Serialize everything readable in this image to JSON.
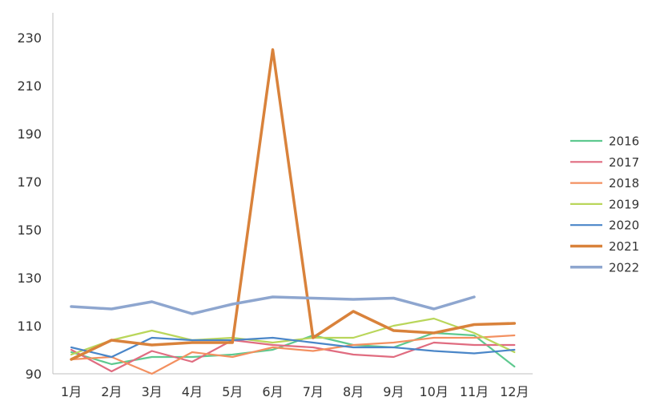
{
  "chart_data": {
    "type": "line",
    "title": "",
    "xlabel": "",
    "ylabel": "",
    "categories": [
      "1月",
      "2月",
      "3月",
      "4月",
      "5月",
      "6月",
      "7月",
      "8月",
      "9月",
      "10月",
      "11月",
      "12月"
    ],
    "ylim": [
      90,
      230
    ],
    "yticks": [
      90,
      110,
      130,
      150,
      170,
      190,
      210,
      230
    ],
    "grid": false,
    "legend_position": "right",
    "series": [
      {
        "name": "2016",
        "color": "#5ec98f",
        "width": 2.2,
        "values": [
          99,
          94,
          97,
          97,
          98,
          100,
          106,
          102,
          101,
          107,
          106,
          93
        ]
      },
      {
        "name": "2017",
        "color": "#e06c80",
        "width": 2.2,
        "values": [
          100,
          91,
          99.5,
          95,
          104,
          102,
          101,
          98,
          97,
          103,
          102,
          102
        ]
      },
      {
        "name": "2018",
        "color": "#f39060",
        "width": 2.2,
        "values": [
          96,
          97,
          90,
          99,
          97,
          101,
          99.5,
          102,
          103,
          105,
          105,
          106
        ]
      },
      {
        "name": "2019",
        "color": "#b9d65a",
        "width": 2.2,
        "values": [
          98,
          104,
          108,
          104,
          105,
          103,
          105,
          105,
          110,
          113,
          107,
          99
        ]
      },
      {
        "name": "2020",
        "color": "#4a86c8",
        "width": 2.2,
        "values": [
          101,
          97,
          105,
          104,
          104,
          105,
          103,
          101,
          101,
          99.5,
          98.5,
          100
        ]
      },
      {
        "name": "2021",
        "color": "#d9823b",
        "width": 3.5,
        "values": [
          96,
          104,
          102,
          103,
          103,
          225,
          105,
          116,
          108,
          107,
          110.5,
          111
        ]
      },
      {
        "name": "2022",
        "color": "#8ea6cf",
        "width": 3.5,
        "values": [
          118,
          117,
          120,
          115,
          119,
          122,
          121.5,
          121,
          121.5,
          117,
          122,
          null
        ]
      }
    ]
  }
}
